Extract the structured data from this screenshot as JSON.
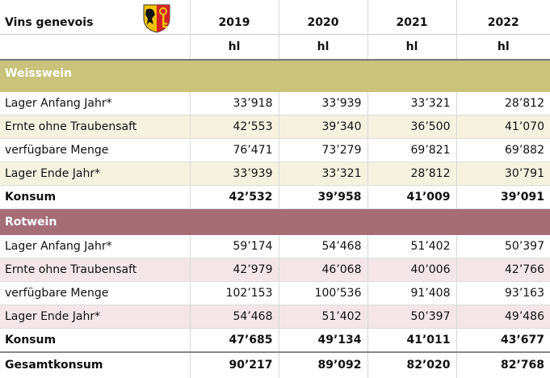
{
  "header": {
    "title": "Vins genevois",
    "years": [
      "2019",
      "2020",
      "2021",
      "2022"
    ],
    "units": [
      "hl",
      "hl",
      "hl",
      "hl"
    ]
  },
  "sections": [
    {
      "name": "Weisswein",
      "rows": [
        {
          "label": "Lager Anfang Jahr*",
          "values": [
            "33’918",
            "33’939",
            "33’321",
            "28’812"
          ]
        },
        {
          "label": "Ernte ohne Traubensaft",
          "values": [
            "42’553",
            "39’340",
            "36’500",
            "41’070"
          ]
        },
        {
          "label": "verfügbare Menge",
          "values": [
            "76’471",
            "73’279",
            "69’821",
            "69’882"
          ]
        },
        {
          "label": "Lager Ende Jahr*",
          "values": [
            "33’939",
            "33’321",
            "28’812",
            "30’791"
          ]
        },
        {
          "label": "Konsum",
          "values": [
            "42’532",
            "39’958",
            "41’009",
            "39’091"
          ]
        }
      ]
    },
    {
      "name": "Rotwein",
      "rows": [
        {
          "label": "Lager Anfang Jahr*",
          "values": [
            "59’174",
            "54’468",
            "51’402",
            "50’397"
          ]
        },
        {
          "label": "Ernte ohne Traubensaft",
          "values": [
            "42’979",
            "46’068",
            "40’006",
            "42’766"
          ]
        },
        {
          "label": "verfügbare Menge",
          "values": [
            "102’153",
            "100’536",
            "91’408",
            "93’163"
          ]
        },
        {
          "label": "Lager Ende Jahr*",
          "values": [
            "54’468",
            "51’402",
            "50’397",
            "49’486"
          ]
        },
        {
          "label": "Konsum",
          "values": [
            "47’685",
            "49’134",
            "41’011",
            "43’677"
          ]
        }
      ]
    }
  ],
  "total": {
    "label": "Gesamtkonsum",
    "values": [
      "90’217",
      "89’092",
      "82’020",
      "82’768"
    ]
  }
}
